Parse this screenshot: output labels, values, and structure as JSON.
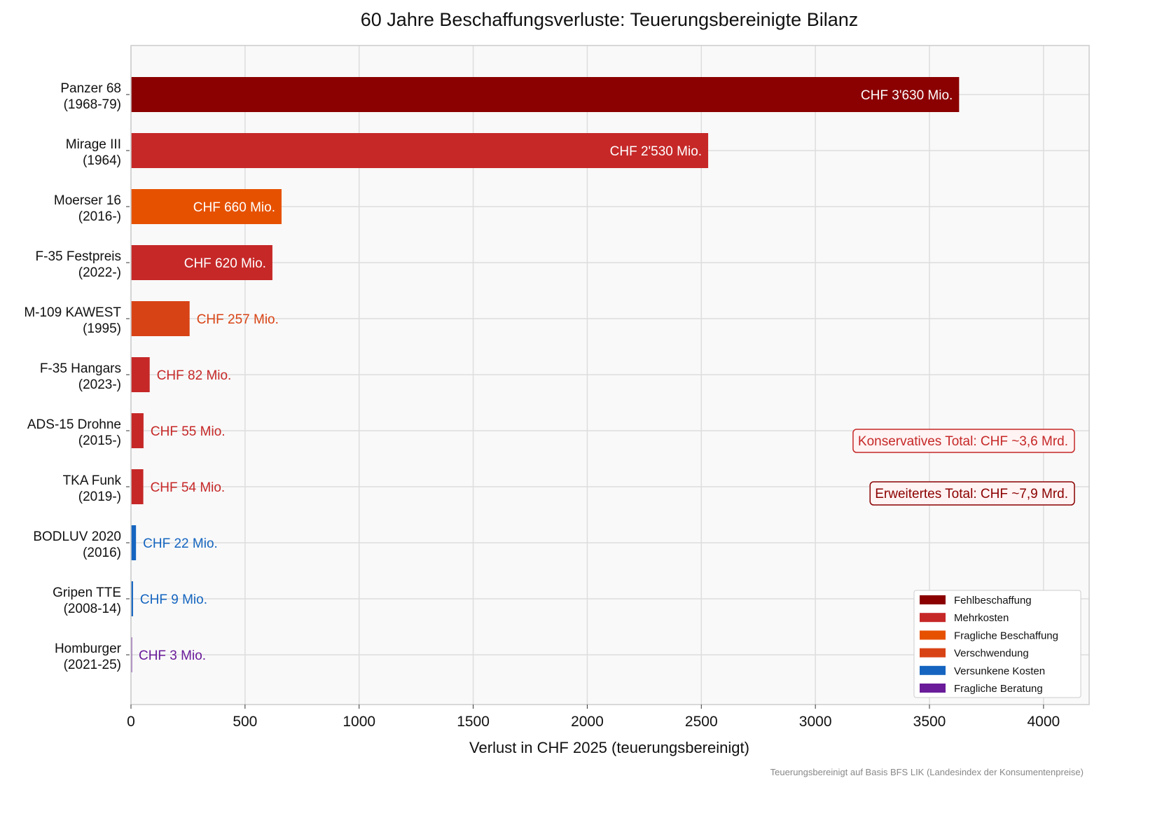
{
  "chart_data": {
    "type": "bar",
    "orientation": "horizontal",
    "title": "60 Jahre Beschaffungsverluste: Teuerungsbereinigte Bilanz",
    "xlabel": "Verlust in CHF 2025 (teuerungsbereinigt)",
    "ylabel": "",
    "xlim": [
      0,
      4200
    ],
    "xticks": [
      0,
      500,
      1000,
      1500,
      2000,
      2500,
      3000,
      3500,
      4000
    ],
    "grid": true,
    "legend_position": "lower-right",
    "categories": [
      [
        "Panzer 68",
        "(1968-79)"
      ],
      [
        "Mirage III",
        "(1964)"
      ],
      [
        "Moerser 16",
        "(2016-)"
      ],
      [
        "F-35 Festpreis",
        "(2022-)"
      ],
      [
        "M-109 KAWEST",
        "(1995)"
      ],
      [
        "F-35 Hangars",
        "(2023-)"
      ],
      [
        "ADS-15 Drohne",
        "(2015-)"
      ],
      [
        "TKA Funk",
        "(2019-)"
      ],
      [
        "BODLUV 2020",
        "(2016)"
      ],
      [
        "Gripen TTE",
        "(2008-14)"
      ],
      [
        "Homburger",
        "(2021-25)"
      ]
    ],
    "values": [
      3630,
      2530,
      660,
      620,
      257,
      82,
      55,
      54,
      22,
      9,
      3
    ],
    "data_labels": [
      "CHF 3'630 Mio.",
      "CHF 2'530 Mio.",
      "CHF 660 Mio.",
      "CHF 620 Mio.",
      "CHF 257 Mio.",
      "CHF 82 Mio.",
      "CHF 55 Mio.",
      "CHF 54 Mio.",
      "CHF 22 Mio.",
      "CHF 9 Mio.",
      "CHF 3 Mio."
    ],
    "bar_categories": [
      0,
      1,
      2,
      1,
      3,
      1,
      1,
      1,
      4,
      4,
      5
    ],
    "legend": [
      {
        "label": "Fehlbeschaffung",
        "color": "#8B0000"
      },
      {
        "label": "Mehrkosten",
        "color": "#C62828"
      },
      {
        "label": "Fragliche Beschaffung",
        "color": "#E65100"
      },
      {
        "label": "Verschwendung",
        "color": "#D84315"
      },
      {
        "label": "Versunkene Kosten",
        "color": "#1565C0"
      },
      {
        "label": "Fragliche Beratung",
        "color": "#6A1B9A"
      }
    ],
    "annotations": [
      {
        "text": "Konservatives Total: CHF ~3,6 Mrd.",
        "color": "#C62828"
      },
      {
        "text": "Erweitertes Total: CHF ~7,9 Mrd.",
        "color": "#8B0000"
      }
    ],
    "footnote": "Teuerungsbereinigt auf Basis BFS LIK (Landesindex der Konsumentenpreise)"
  }
}
